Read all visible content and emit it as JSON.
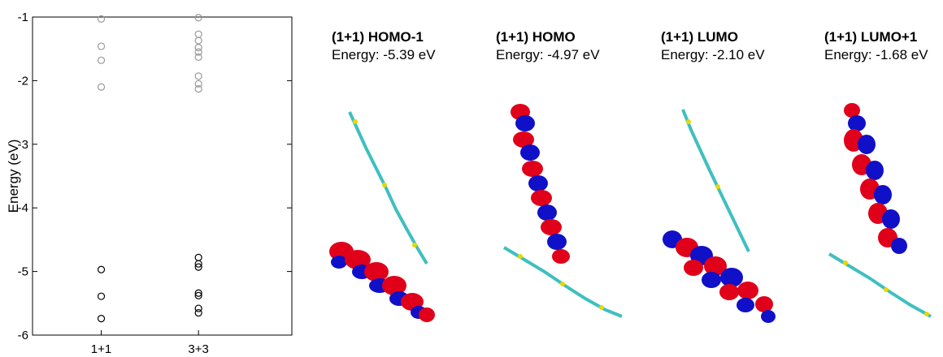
{
  "chart_data": {
    "type": "scatter",
    "ylabel": "Energy (eV)",
    "xlabel": "",
    "categories": [
      "1+1",
      "3+3"
    ],
    "ylim": [
      -6,
      -1
    ],
    "yticks": [
      -1,
      -2,
      -3,
      -4,
      -5,
      -6
    ],
    "series": [
      {
        "color": "#999999",
        "points": [
          {
            "x": "1+1",
            "y": -1.03
          },
          {
            "x": "1+1",
            "y": -1.46
          },
          {
            "x": "1+1",
            "y": -1.68
          },
          {
            "x": "1+1",
            "y": -2.1
          },
          {
            "x": "3+3",
            "y": -1.01
          },
          {
            "x": "3+3",
            "y": -1.27
          },
          {
            "x": "3+3",
            "y": -1.37
          },
          {
            "x": "3+3",
            "y": -1.48
          },
          {
            "x": "3+3",
            "y": -1.55
          },
          {
            "x": "3+3",
            "y": -1.63
          },
          {
            "x": "3+3",
            "y": -1.93
          },
          {
            "x": "3+3",
            "y": -2.05
          },
          {
            "x": "3+3",
            "y": -2.13
          }
        ]
      },
      {
        "color": "#000000",
        "points": [
          {
            "x": "1+1",
            "y": -4.97
          },
          {
            "x": "1+1",
            "y": -5.39
          },
          {
            "x": "1+1",
            "y": -5.74
          },
          {
            "x": "3+3",
            "y": -4.78
          },
          {
            "x": "3+3",
            "y": -4.88
          },
          {
            "x": "3+3",
            "y": -4.93
          },
          {
            "x": "3+3",
            "y": -5.34
          },
          {
            "x": "3+3",
            "y": -5.38
          },
          {
            "x": "3+3",
            "y": -5.58
          },
          {
            "x": "3+3",
            "y": -5.65
          }
        ]
      }
    ]
  },
  "panels": [
    {
      "title": "(1+1) HOMO-1",
      "energy": "Energy: -5.39 eV"
    },
    {
      "title": "(1+1) HOMO",
      "energy": "Energy: -4.97 eV"
    },
    {
      "title": "(1+1) LUMO",
      "energy": "Energy: -2.10 eV"
    },
    {
      "title": "(1+1) LUMO+1",
      "energy": "Energy: -1.68 eV"
    }
  ],
  "colors": {
    "orbital_positive": "#e0001a",
    "orbital_negative": "#1010c8",
    "carbon": "#3fbfbf",
    "sulfur": "#e8d800",
    "hydrogen": "#dddddd"
  }
}
